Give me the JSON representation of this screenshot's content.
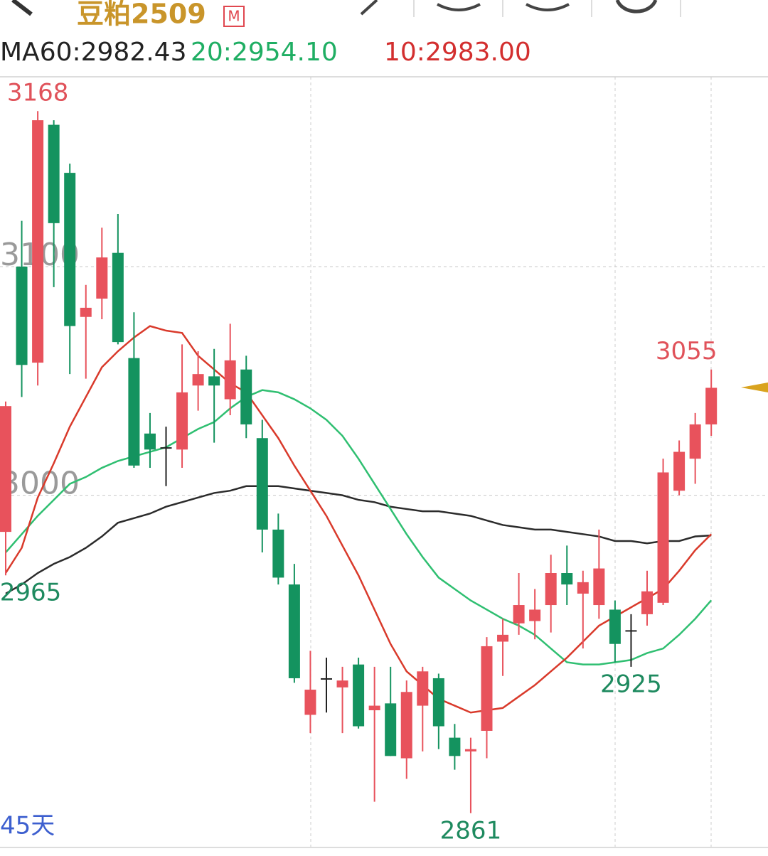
{
  "header": {
    "title": "豆粕2509",
    "badge": "M"
  },
  "chart_data": {
    "type": "candlestick",
    "open": [
      2984,
      3100,
      3058,
      3162,
      3141,
      3078,
      3086,
      3106,
      3060,
      3027,
      3021,
      3020,
      3048,
      3052,
      3042,
      3055,
      3025,
      2985,
      2961,
      2904,
      2920,
      2916,
      2926,
      2906,
      2909,
      2885,
      2908,
      2920,
      2894,
      2888,
      2897,
      2936,
      2944,
      2945,
      2952,
      2966,
      2957,
      2952,
      2950,
      2941,
      2948,
      2953,
      3002,
      3016,
      3031
    ],
    "high": [
      3041,
      3120,
      3168,
      3164,
      3145,
      3092,
      3117,
      3123,
      3080,
      3036,
      3030,
      3066,
      3063,
      3064,
      3075,
      3061,
      3033,
      2992,
      2970,
      2932,
      2929,
      2925,
      2929,
      2925,
      2925,
      2919,
      2925,
      2922,
      2900,
      2894,
      2938,
      2946,
      2966,
      2959,
      2974,
      2978,
      2967,
      2985,
      2954,
      2948,
      2967,
      3016,
      3024,
      3036,
      3055
    ],
    "low": [
      2965,
      3043,
      3048,
      3091,
      3053,
      3051,
      3077,
      3066,
      3012,
      3012,
      3004,
      3012,
      3037,
      3023,
      3035,
      3025,
      2975,
      2961,
      2918,
      2896,
      2905,
      2896,
      2898,
      2866,
      2886,
      2876,
      2888,
      2889,
      2880,
      2861,
      2885,
      2921,
      2939,
      2937,
      2940,
      2952,
      2933,
      2946,
      2927,
      2925,
      2943,
      2952,
      3000,
      3005,
      3026
    ],
    "close": [
      3039,
      3057,
      3164,
      3119,
      3074,
      3082,
      3104,
      3067,
      3013,
      3020,
      3021,
      3045,
      3053,
      3048,
      3059,
      3031,
      2985,
      2964,
      2920,
      2915,
      2920,
      2919,
      2899,
      2908,
      2886,
      2914,
      2923,
      2899,
      2886,
      2889,
      2934,
      2939,
      2952,
      2950,
      2966,
      2961,
      2962,
      2968,
      2935,
      2941,
      2958,
      3010,
      3019,
      3031,
      3047
    ],
    "up_color": "#e8525c",
    "down_color": "#14935f",
    "flat_color": "#222222",
    "ma_lines": [
      {
        "label": "MA60:2982.43",
        "color": "#2b2b2b",
        "values": [
          2957,
          2961,
          2966,
          2970,
          2973,
          2977,
          2982,
          2988,
          2990,
          2992,
          2995,
          2997,
          2999,
          3001,
          3002,
          3004,
          3004,
          3004,
          3003,
          3002,
          3001,
          3000,
          2998,
          2997,
          2995,
          2994,
          2993,
          2993,
          2992,
          2991,
          2989,
          2987,
          2986,
          2985,
          2985,
          2984,
          2983,
          2982,
          2980,
          2980,
          2979,
          2980,
          2980,
          2982,
          2982.43
        ]
      },
      {
        "label": "20:2954.10",
        "color": "#2fbf71",
        "values": [
          2975,
          2983,
          2991,
          2998,
          3005,
          3008,
          3012,
          3015,
          3017,
          3019,
          3021,
          3025,
          3029,
          3032,
          3038,
          3043,
          3046,
          3045,
          3042,
          3038,
          3033,
          3026,
          3016,
          3005,
          2994,
          2983,
          2973,
          2964,
          2959,
          2954,
          2950,
          2946,
          2943,
          2939,
          2933,
          2927,
          2926,
          2926,
          2927,
          2928,
          2931,
          2933,
          2939,
          2946,
          2954.1
        ]
      },
      {
        "label": "10:2983.00",
        "color": "#d93a2b",
        "values": [
          2966,
          2977,
          2999,
          3014,
          3030,
          3043,
          3056,
          3063,
          3069,
          3074,
          3072,
          3071,
          3061,
          3055,
          3049,
          3045,
          3035,
          3025,
          3013,
          3002,
          2991,
          2978,
          2965,
          2950,
          2935,
          2923,
          2917,
          2911,
          2908,
          2905,
          2906,
          2907,
          2912,
          2917,
          2923,
          2929,
          2936,
          2943,
          2947,
          2951,
          2955,
          2959,
          2967,
          2976,
          2983
        ]
      }
    ],
    "ylim": [
      2846,
      3183
    ],
    "yticks": [
      3000,
      3100
    ],
    "period_label": "45天"
  }
}
